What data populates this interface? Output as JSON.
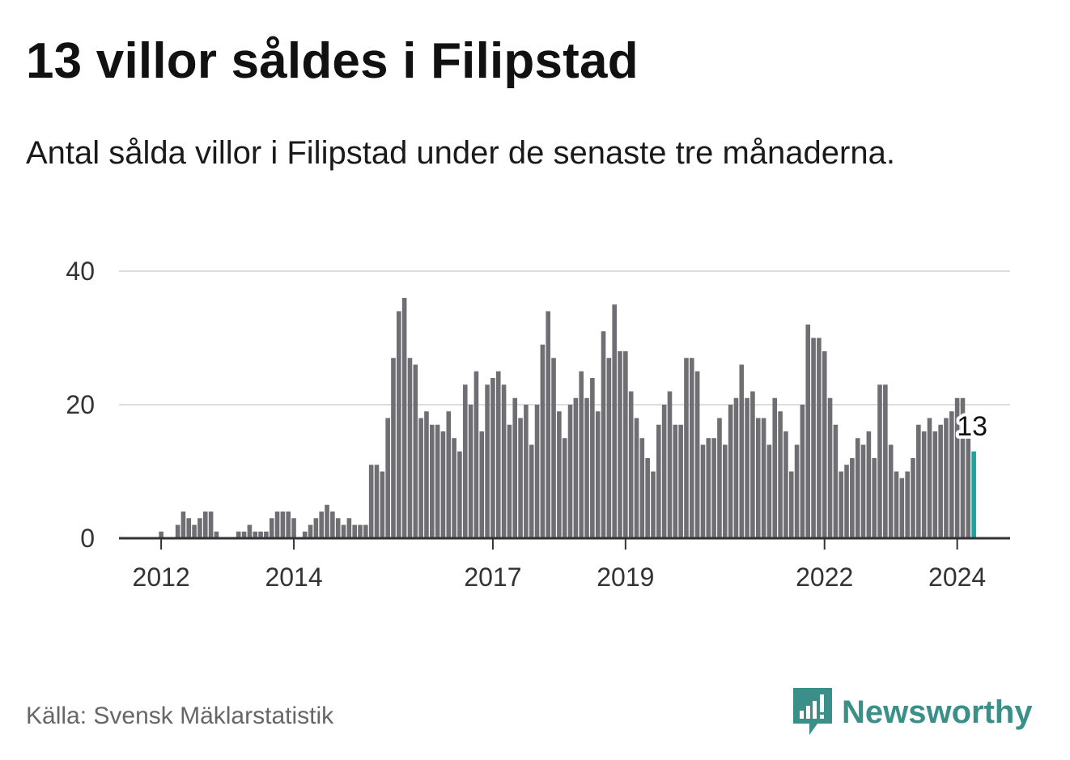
{
  "title": "13 villor såldes i Filipstad",
  "subtitle": "Antal sålda villor i Filipstad under de senaste tre månaderna.",
  "source": "Källa: Svensk Mäklarstatistik",
  "brand": "Newsworthy",
  "colors": {
    "bar": "#6f6e73",
    "highlight": "#1ba39c",
    "grid": "#dddddd",
    "axis": "#333333",
    "brand": "#3a8f88"
  },
  "chart_data": {
    "type": "bar",
    "title": "13 villor såldes i Filipstad",
    "xlabel": "",
    "ylabel": "",
    "ylim": [
      0,
      40
    ],
    "yticks": [
      0,
      20,
      40
    ],
    "xticks": [
      {
        "label": "2012",
        "index": 4
      },
      {
        "label": "2014",
        "index": 28
      },
      {
        "label": "2017",
        "index": 64
      },
      {
        "label": "2019",
        "index": 88
      },
      {
        "label": "2022",
        "index": 124
      },
      {
        "label": "2024",
        "index": 148
      }
    ],
    "start": "2011-09",
    "frequency": "monthly",
    "values": [
      0,
      0,
      0,
      0,
      1,
      0,
      0,
      2,
      4,
      3,
      2,
      3,
      4,
      4,
      1,
      0,
      0,
      0,
      1,
      1,
      2,
      1,
      1,
      1,
      3,
      4,
      4,
      4,
      3,
      0,
      1,
      2,
      3,
      4,
      5,
      4,
      3,
      2,
      3,
      2,
      2,
      2,
      11,
      11,
      10,
      18,
      27,
      34,
      36,
      27,
      26,
      18,
      19,
      17,
      17,
      16,
      19,
      15,
      13,
      23,
      20,
      25,
      16,
      23,
      24,
      25,
      23,
      17,
      21,
      18,
      20,
      14,
      20,
      29,
      34,
      27,
      19,
      15,
      20,
      21,
      25,
      21,
      24,
      19,
      31,
      27,
      35,
      28,
      28,
      22,
      18,
      15,
      12,
      10,
      17,
      20,
      22,
      17,
      17,
      27,
      27,
      25,
      14,
      15,
      15,
      18,
      14,
      20,
      21,
      26,
      21,
      22,
      18,
      18,
      14,
      21,
      19,
      16,
      10,
      14,
      20,
      32,
      30,
      30,
      28,
      21,
      17,
      10,
      11,
      12,
      15,
      14,
      16,
      12,
      23,
      23,
      14,
      10,
      9,
      10,
      12,
      17,
      16,
      18,
      16,
      17,
      18,
      19,
      21,
      21,
      15,
      13
    ],
    "highlight_index": 151,
    "annotation": {
      "index": 151,
      "text": "13"
    }
  }
}
